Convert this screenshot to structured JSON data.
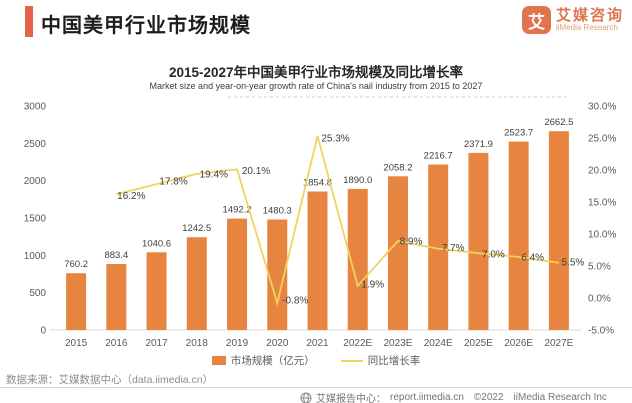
{
  "header": {
    "title": "中国美甲行业市场规模"
  },
  "logo": {
    "mark": "艾",
    "name_cn": "艾媒咨询",
    "name_en": "iiMedia Research"
  },
  "chart": {
    "title": "2015-2027年中国美甲行业市场规模及同比增长率",
    "subtitle": "Market size and year-on-year growth rate of China's nail industry from 2015 to 2027"
  },
  "chart_data": {
    "type": "bar+line combo",
    "categories": [
      "2015",
      "2016",
      "2017",
      "2018",
      "2019",
      "2020",
      "2021",
      "2022E",
      "2023E",
      "2024E",
      "2025E",
      "2026E",
      "2027E"
    ],
    "series": [
      {
        "name": "市场规模（亿元）",
        "type": "bar",
        "color": "#E78540",
        "values": [
          760.2,
          883.4,
          1040.6,
          1242.5,
          1492.2,
          1480.3,
          1854.8,
          1890.0,
          2058.2,
          2216.7,
          2371.9,
          2523.7,
          2662.5
        ],
        "labels": [
          "760.2",
          "883.4",
          "1040.6",
          "1242.5",
          "1492.2",
          "1480.3",
          "1854.8",
          "1890.0",
          "2058.2",
          "2216.7",
          "2371.9",
          "2523.7",
          "2662.5"
        ]
      },
      {
        "name": "同比增长率",
        "type": "line",
        "color": "#EFD35C",
        "values": [
          null,
          16.2,
          17.8,
          19.4,
          20.1,
          -0.8,
          25.3,
          1.9,
          8.9,
          7.7,
          7.0,
          6.4,
          5.5
        ],
        "labels": [
          null,
          "16.2%",
          "17.8%",
          "19.4%",
          "20.1%",
          "-0.8%",
          "25.3%",
          "1.9%",
          "8.9%",
          "7.7%",
          "7.0%",
          "6.4%",
          "5.5%"
        ]
      }
    ],
    "left_axis": {
      "min": 0,
      "max": 3000,
      "tick_values": [
        0,
        500,
        1000,
        1500,
        2000,
        2500,
        3000
      ],
      "ticks": [
        "0",
        "500",
        "1000",
        "1500",
        "2000",
        "2500",
        "3000"
      ]
    },
    "right_axis": {
      "min": -5,
      "max": 30,
      "tick_values": [
        -5,
        0,
        5,
        10,
        15,
        20,
        25,
        30
      ],
      "ticks": [
        "-5.0%",
        "0.0%",
        "5.0%",
        "10.0%",
        "15.0%",
        "20.0%",
        "25.0%",
        "30.0%"
      ]
    },
    "grid": "off",
    "legend_position": "bottom-center"
  },
  "source": {
    "text": "数据来源：艾媒数据中心（data.iimedia.cn）"
  },
  "footer": {
    "label": "艾媒报告中心：",
    "url": "report.iimedia.cn",
    "copyright": "©2022",
    "company": "iiMedia Research Inc"
  }
}
